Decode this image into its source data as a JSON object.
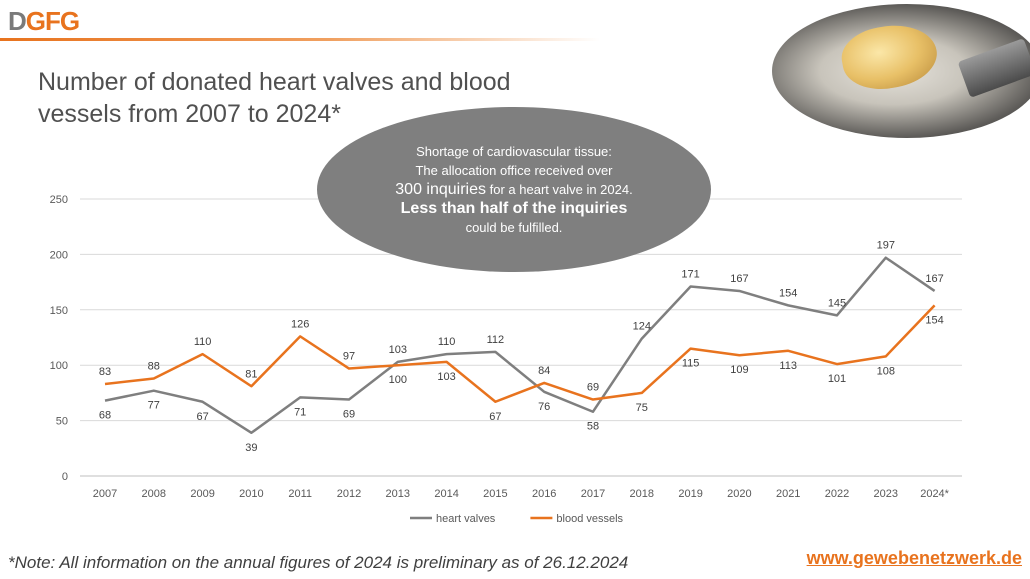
{
  "logo": {
    "part1": "D",
    "part2": "GFG"
  },
  "title": "Number of donated heart valves and blood vessels from 2007 to 2024*",
  "bubble": {
    "line1": "Shortage of cardiovascular tissue:",
    "line2": "The allocation office received over",
    "line3_emph": "300 inquiries",
    "line3_rest": " for a heart valve in 2024.",
    "line4": "Less than half of the inquiries",
    "line5": "could be fulfilled."
  },
  "footnote": "*Note: All information on the annual figures of 2024 is preliminary as of 26.12.2024",
  "website": "www.gewebenetzwerk.de",
  "chart_data": {
    "type": "line",
    "categories": [
      "2007",
      "2008",
      "2009",
      "2010",
      "2011",
      "2012",
      "2013",
      "2014",
      "2015",
      "2016",
      "2017",
      "2018",
      "2019",
      "2020",
      "2021",
      "2022",
      "2023",
      "2024*"
    ],
    "series": [
      {
        "name": "heart valves",
        "color": "#7f7f7f",
        "values": [
          68,
          77,
          67,
          39,
          71,
          69,
          103,
          110,
          112,
          76,
          58,
          124,
          171,
          167,
          154,
          145,
          197,
          167
        ]
      },
      {
        "name": "blood vessels",
        "color": "#e8731e",
        "values": [
          83,
          88,
          110,
          81,
          126,
          97,
          100,
          103,
          67,
          84,
          69,
          75,
          115,
          109,
          113,
          101,
          108,
          154
        ]
      }
    ],
    "yticks": [
      0,
      50,
      100,
      150,
      200,
      250
    ],
    "ylim": [
      0,
      250
    ],
    "grid": true,
    "legend": "bottom"
  }
}
